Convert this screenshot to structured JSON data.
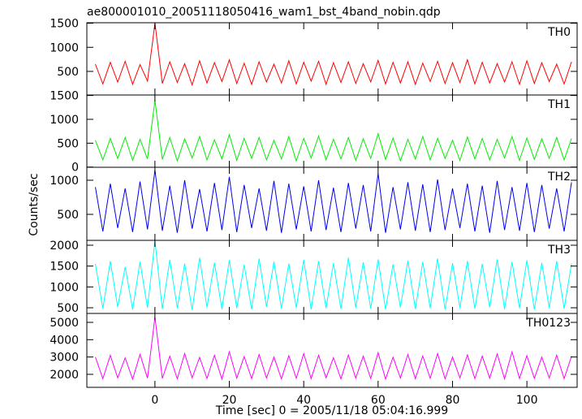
{
  "chart_data": [
    {
      "type": "line",
      "title": "ae800001010_20051118050416_wam1_bst_4band_nobin.qdp",
      "x": [
        -16,
        -14,
        -12,
        -10,
        -8,
        -6,
        -4,
        -2,
        0,
        2,
        4,
        6,
        8,
        10,
        12,
        14,
        16,
        18,
        20,
        22,
        24,
        26,
        28,
        30,
        32,
        34,
        36,
        38,
        40,
        42,
        44,
        46,
        48,
        50,
        52,
        54,
        56,
        58,
        60,
        62,
        64,
        66,
        68,
        70,
        72,
        74,
        76,
        78,
        80,
        82,
        84,
        86,
        88,
        90,
        92,
        94,
        96,
        98,
        100,
        102,
        104,
        106,
        108,
        110,
        112
      ],
      "series": [
        {
          "name": "TH0",
          "color": "#ff0000",
          "values": [
            650,
            240,
            690,
            280,
            710,
            230,
            640,
            300,
            1500,
            250,
            700,
            270,
            660,
            220,
            720,
            260,
            680,
            290,
            740,
            250,
            670,
            230,
            700,
            280,
            650,
            260,
            720,
            240,
            690,
            300,
            710,
            230,
            680,
            270,
            700,
            250,
            660,
            280,
            730,
            240,
            690,
            260,
            700,
            230,
            670,
            290,
            710,
            250,
            680,
            270,
            740,
            240,
            690,
            260,
            660,
            280,
            700,
            230,
            720,
            250,
            680,
            290,
            650,
            240,
            700
          ]
        }
      ],
      "xlim": [
        -18.3,
        113.5
      ],
      "ylim": [
        10,
        1510
      ],
      "yticks": [
        500,
        1000,
        1500
      ]
    },
    {
      "type": "line",
      "x": [
        -16,
        -14,
        -12,
        -10,
        -8,
        -6,
        -4,
        -2,
        0,
        2,
        4,
        6,
        8,
        10,
        12,
        14,
        16,
        18,
        20,
        22,
        24,
        26,
        28,
        30,
        32,
        34,
        36,
        38,
        40,
        42,
        44,
        46,
        48,
        50,
        52,
        54,
        56,
        58,
        60,
        62,
        64,
        66,
        68,
        70,
        72,
        74,
        76,
        78,
        80,
        82,
        84,
        86,
        88,
        90,
        92,
        94,
        96,
        98,
        100,
        102,
        104,
        106,
        108,
        110,
        112
      ],
      "series": [
        {
          "name": "TH1",
          "color": "#00ee00",
          "values": [
            560,
            150,
            600,
            180,
            620,
            140,
            580,
            170,
            1400,
            160,
            620,
            130,
            590,
            190,
            640,
            150,
            570,
            170,
            680,
            140,
            600,
            180,
            620,
            150,
            560,
            170,
            640,
            130,
            600,
            190,
            650,
            150,
            580,
            170,
            620,
            140,
            590,
            180,
            700,
            160,
            610,
            130,
            580,
            170,
            640,
            150,
            600,
            180,
            560,
            140,
            630,
            170,
            600,
            150,
            580,
            190,
            640,
            140,
            610,
            160,
            590,
            180,
            620,
            150,
            600
          ]
        }
      ],
      "xlim": [
        -18.3,
        113.5
      ],
      "ylim": [
        -5,
        1510
      ],
      "yticks": [
        0,
        500,
        1000,
        1500
      ]
    },
    {
      "type": "line",
      "ylabel": "Counts/sec",
      "x": [
        -16,
        -14,
        -12,
        -10,
        -8,
        -6,
        -4,
        -2,
        0,
        2,
        4,
        6,
        8,
        10,
        12,
        14,
        16,
        18,
        20,
        22,
        24,
        26,
        28,
        30,
        32,
        34,
        36,
        38,
        40,
        42,
        44,
        46,
        48,
        50,
        52,
        54,
        56,
        58,
        60,
        62,
        64,
        66,
        68,
        70,
        72,
        74,
        76,
        78,
        80,
        82,
        84,
        86,
        88,
        90,
        92,
        94,
        96,
        98,
        100,
        102,
        104,
        106,
        108,
        110,
        112
      ],
      "series": [
        {
          "name": "TH2",
          "color": "#0000ee",
          "values": [
            900,
            250,
            950,
            300,
            880,
            240,
            980,
            280,
            1150,
            260,
            920,
            230,
            1000,
            290,
            870,
            250,
            960,
            270,
            1050,
            240,
            930,
            300,
            880,
            260,
            990,
            230,
            950,
            280,
            910,
            250,
            1000,
            270,
            890,
            240,
            960,
            290,
            930,
            250,
            1100,
            230,
            900,
            280,
            970,
            260,
            940,
            240,
            1010,
            270,
            880,
            300,
            950,
            250,
            920,
            230,
            990,
            270,
            900,
            260,
            960,
            240,
            930,
            290,
            880,
            250,
            970
          ]
        }
      ],
      "xlim": [
        -18.3,
        113.5
      ],
      "ylim": [
        119,
        1190
      ],
      "yticks": [
        500,
        1000
      ]
    },
    {
      "type": "line",
      "x": [
        -16,
        -14,
        -12,
        -10,
        -8,
        -6,
        -4,
        -2,
        0,
        2,
        4,
        6,
        8,
        10,
        12,
        14,
        16,
        18,
        20,
        22,
        24,
        26,
        28,
        30,
        32,
        34,
        36,
        38,
        40,
        42,
        44,
        46,
        48,
        50,
        52,
        54,
        56,
        58,
        60,
        62,
        64,
        66,
        68,
        70,
        72,
        74,
        76,
        78,
        80,
        82,
        84,
        86,
        88,
        90,
        92,
        94,
        96,
        98,
        100,
        102,
        104,
        106,
        108,
        110,
        112
      ],
      "series": [
        {
          "name": "TH3",
          "color": "#00ffff",
          "values": [
            1550,
            480,
            1620,
            520,
            1480,
            460,
            1600,
            500,
            2100,
            470,
            1650,
            490,
            1560,
            450,
            1700,
            510,
            1580,
            470,
            1640,
            490,
            1530,
            460,
            1680,
            520,
            1600,
            480,
            1560,
            500,
            1650,
            460,
            1620,
            490,
            1570,
            470,
            1700,
            500,
            1590,
            480,
            1660,
            460,
            1540,
            510,
            1630,
            470,
            1600,
            490,
            1680,
            460,
            1570,
            500,
            1620,
            480,
            1550,
            510,
            1660,
            470,
            1600,
            490,
            1640,
            460,
            1580,
            500,
            1620,
            480,
            1560
          ]
        }
      ],
      "xlim": [
        -18.3,
        113.5
      ],
      "ylim": [
        364,
        2117
      ],
      "yticks": [
        500,
        1000,
        1500,
        2000
      ]
    },
    {
      "type": "line",
      "xlabel": "Time [sec] 0 = 2005/11/18 05:04:16.999",
      "x": [
        -16,
        -14,
        -12,
        -10,
        -8,
        -6,
        -4,
        -2,
        0,
        2,
        4,
        6,
        8,
        10,
        12,
        14,
        16,
        18,
        20,
        22,
        24,
        26,
        28,
        30,
        32,
        34,
        36,
        38,
        40,
        42,
        44,
        46,
        48,
        50,
        52,
        54,
        56,
        58,
        60,
        62,
        64,
        66,
        68,
        70,
        72,
        74,
        76,
        78,
        80,
        82,
        84,
        86,
        88,
        90,
        92,
        94,
        96,
        98,
        100,
        102,
        104,
        106,
        108,
        110,
        112
      ],
      "series": [
        {
          "name": "TH0123",
          "color": "#ff00ff",
          "values": [
            3000,
            1750,
            3100,
            1800,
            2950,
            1720,
            3150,
            1780,
            5300,
            1760,
            3050,
            1740,
            3200,
            1800,
            2980,
            1760,
            3100,
            1730,
            3300,
            1780,
            3020,
            1750,
            3150,
            1790,
            3000,
            1740,
            3080,
            1770,
            3200,
            1750,
            3100,
            1800,
            2960,
            1740,
            3120,
            1780,
            3050,
            1760,
            3250,
            1730,
            2990,
            1790,
            3150,
            1750,
            3060,
            1770,
            3200,
            1740,
            3000,
            1790,
            3120,
            1750,
            3050,
            1780,
            3180,
            1740,
            3300,
            1760,
            3080,
            1770,
            3000,
            1790,
            3100,
            1750,
            3050
          ]
        }
      ],
      "xlim": [
        -18.3,
        113.5
      ],
      "ylim": [
        1250,
        5515
      ],
      "yticks": [
        2000,
        3000,
        4000,
        5000
      ],
      "xticks": [
        0,
        20,
        40,
        60,
        80,
        100
      ]
    }
  ]
}
